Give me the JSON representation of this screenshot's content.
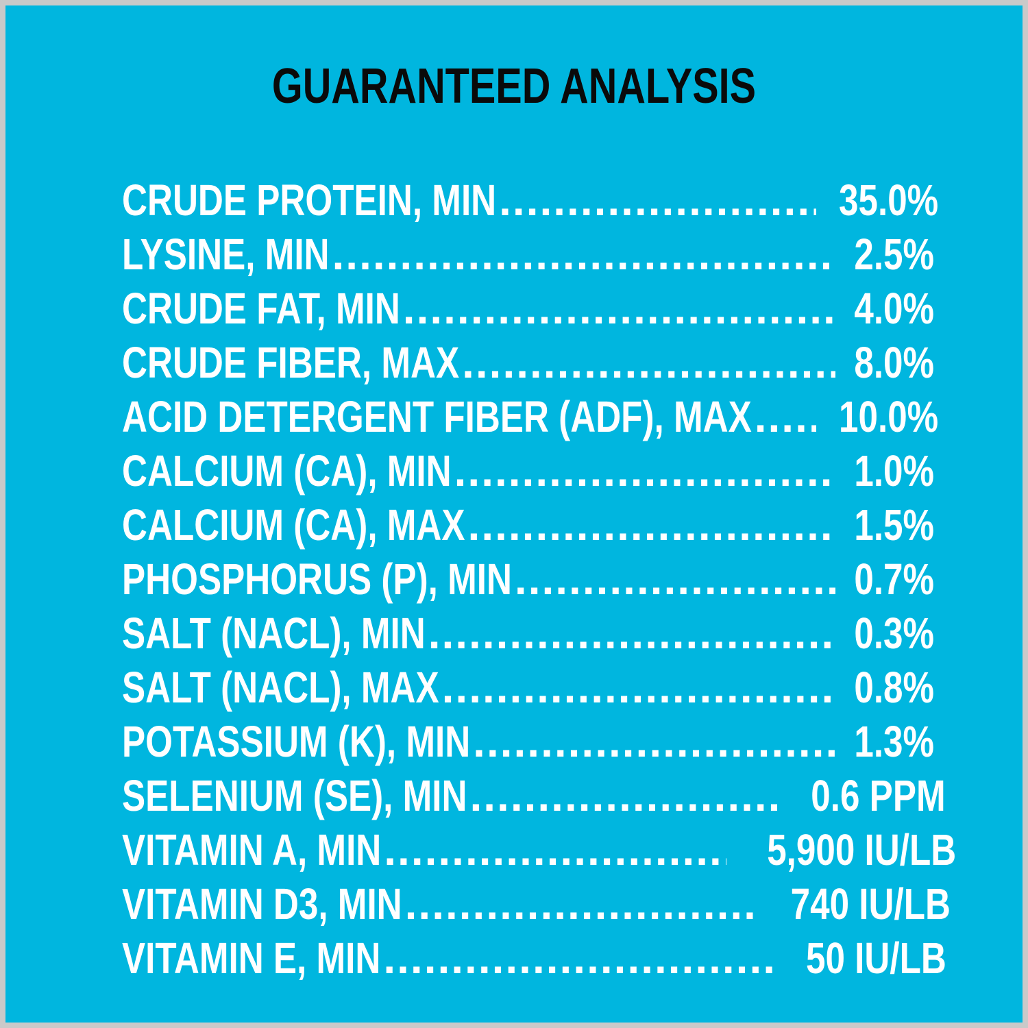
{
  "colors": {
    "background": "#00b6df",
    "border": "#c9c9c9",
    "title": "#0a0a0a",
    "text": "#ffffff"
  },
  "title": "GUARANTEED ANALYSIS",
  "rows": [
    {
      "label": "CRUDE PROTEIN, MIN",
      "value": "35.0%"
    },
    {
      "label": "LYSINE, MIN",
      "value": "2.5%"
    },
    {
      "label": "CRUDE FAT, MIN",
      "value": "4.0%"
    },
    {
      "label": "CRUDE FIBER, MAX",
      "value": "8.0%"
    },
    {
      "label": "ACID DETERGENT FIBER (ADF), MAX",
      "value": "10.0%"
    },
    {
      "label": "CALCIUM (CA), MIN",
      "value": "1.0%"
    },
    {
      "label": "CALCIUM (CA), MAX",
      "value": "1.5%"
    },
    {
      "label": "PHOSPHORUS (P), MIN",
      "value": "0.7%"
    },
    {
      "label": "SALT (NACL), MIN",
      "value": "0.3%"
    },
    {
      "label": "SALT (NACL), MAX",
      "value": "0.8%"
    },
    {
      "label": "POTASSIUM (K), MIN",
      "value": "1.3%"
    },
    {
      "label": "SELENIUM (SE), MIN",
      "value": "0.6 PPM"
    },
    {
      "label": "VITAMIN A, MIN",
      "value": "5,900 IU/LB"
    },
    {
      "label": "VITAMIN D3, MIN",
      "value": "740 IU/LB"
    },
    {
      "label": "VITAMIN E, MIN",
      "value": "50 IU/LB"
    }
  ]
}
